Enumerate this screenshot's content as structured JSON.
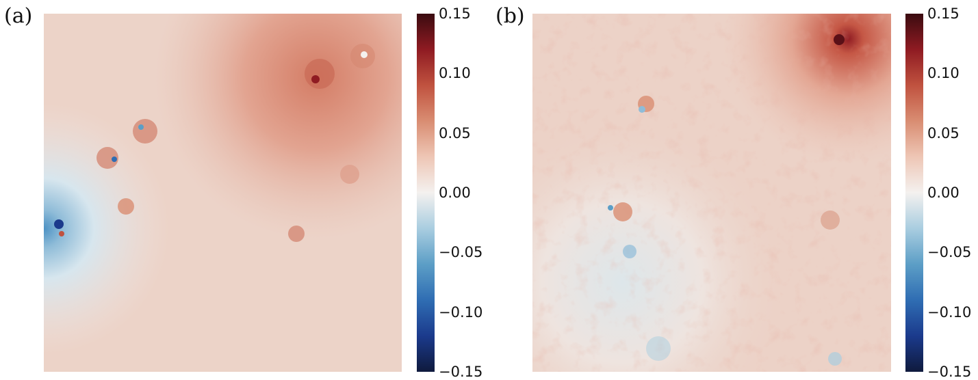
{
  "chart_data": [
    {
      "type": "heatmap",
      "panel_label": "(a)",
      "colormap": [
        "#0f1a3d",
        "#1b3a8c",
        "#2f6db3",
        "#5c9ec6",
        "#a9cde0",
        "#f4f1ef",
        "#eec6b5",
        "#d98d72",
        "#c0523f",
        "#8f1b22",
        "#3a0b10"
      ],
      "clim": [
        -0.15,
        0.15
      ],
      "colorbar_ticks": [
        "0.15",
        "0.10",
        "0.05",
        "0.00",
        "−0.05",
        "−0.10",
        "−0.15"
      ],
      "grid": false,
      "colorbar_position": "right"
    },
    {
      "type": "heatmap",
      "panel_label": "(b)",
      "colormap": [
        "#0f1a3d",
        "#1b3a8c",
        "#2f6db3",
        "#5c9ec6",
        "#a9cde0",
        "#f4f1ef",
        "#eec6b5",
        "#d98d72",
        "#c0523f",
        "#8f1b22",
        "#3a0b10"
      ],
      "clim": [
        -0.15,
        0.15
      ],
      "colorbar_ticks": [
        "0.15",
        "0.10",
        "0.05",
        "0.00",
        "−0.05",
        "−0.10",
        "−0.15"
      ],
      "grid": false,
      "colorbar_position": "right"
    }
  ]
}
